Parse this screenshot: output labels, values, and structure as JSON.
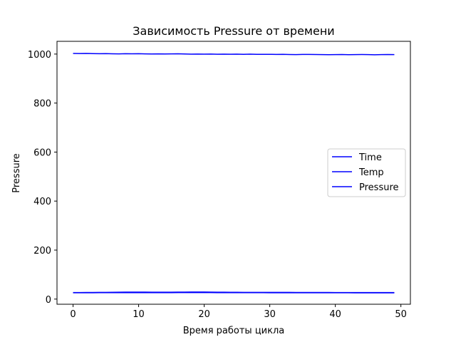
{
  "chart_data": {
    "type": "line",
    "title": "Зависимость Pressure от времени",
    "xlabel": "Время работы цикла",
    "ylabel": "Pressure",
    "xlim": [
      -2.45,
      51.45
    ],
    "ylim": [
      -21,
      1052
    ],
    "xticks": [
      0,
      10,
      20,
      30,
      40,
      50
    ],
    "yticks": [
      0,
      200,
      400,
      600,
      800,
      1000
    ],
    "grid": false,
    "legend_position": "center-right",
    "x": [
      0,
      1,
      2,
      3,
      4,
      5,
      6,
      7,
      8,
      9,
      10,
      11,
      12,
      13,
      14,
      15,
      16,
      17,
      18,
      19,
      20,
      21,
      22,
      23,
      24,
      25,
      26,
      27,
      28,
      29,
      30,
      31,
      32,
      33,
      34,
      35,
      36,
      37,
      38,
      39,
      40,
      41,
      42,
      43,
      44,
      45,
      46,
      47,
      48,
      49
    ],
    "series": [
      {
        "name": "Time",
        "color": "#0000ff",
        "values": [
          25.9,
          25.9,
          26.0,
          26.0,
          26.1,
          26.1,
          26.2,
          26.3,
          26.3,
          26.4,
          26.4,
          26.4,
          26.4,
          26.4,
          26.4,
          26.4,
          26.5,
          26.5,
          26.6,
          26.6,
          26.6,
          26.5,
          26.4,
          26.3,
          26.2,
          26.2,
          26.1,
          26.1,
          26.1,
          26.1,
          26.0,
          26.0,
          26.0,
          26.0,
          25.9,
          25.9,
          25.9,
          25.9,
          25.9,
          25.9,
          25.8,
          25.8,
          25.8,
          25.7,
          25.7,
          25.7,
          25.7,
          25.6,
          25.6,
          25.6
        ]
      },
      {
        "name": "Temp",
        "color": "#0000ff",
        "values": [
          26.5,
          26.6,
          26.8,
          27.0,
          27.2,
          27.5,
          27.8,
          28.1,
          28.3,
          28.4,
          28.4,
          28.3,
          28.2,
          28.1,
          28.1,
          28.1,
          28.3,
          28.5,
          28.7,
          28.8,
          28.7,
          28.5,
          28.2,
          27.9,
          27.7,
          27.6,
          27.5,
          27.5,
          27.4,
          27.3,
          27.3,
          27.2,
          27.2,
          27.2,
          27.1,
          27.1,
          27.1,
          27.0,
          26.9,
          26.8,
          26.7,
          26.7,
          26.6,
          26.6,
          26.6,
          26.5,
          26.5,
          26.5,
          26.5,
          26.5
        ]
      },
      {
        "name": "Pressure",
        "color": "#0000ff",
        "values": [
          1002.5,
          1002.3,
          1002.6,
          1002.0,
          1001.5,
          1001.8,
          1001.2,
          1000.9,
          1001.4,
          1001.0,
          1001.6,
          1000.8,
          1000.4,
          1000.9,
          1000.2,
          1000.7,
          1001.1,
          1000.3,
          999.8,
          1000.1,
          999.6,
          999.9,
          999.4,
          999.8,
          999.2,
          999.5,
          998.9,
          999.6,
          999.1,
          998.8,
          999.0,
          998.6,
          998.9,
          998.3,
          998.0,
          998.5,
          998.7,
          998.2,
          997.8,
          997.5,
          997.9,
          998.1,
          997.6,
          997.9,
          998.3,
          998.0,
          997.2,
          997.8,
          998.1,
          997.7
        ]
      }
    ]
  }
}
